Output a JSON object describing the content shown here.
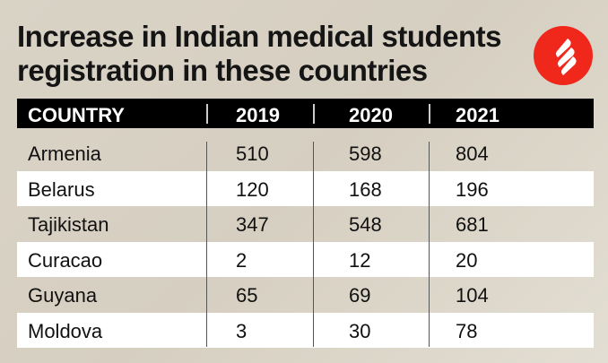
{
  "title": "Increase in Indian medical students registration in these countries",
  "logo": {
    "name": "indian-express-logo",
    "color": "#f0281c"
  },
  "chart_data": {
    "type": "table",
    "title": "Increase in Indian medical students registration in these countries",
    "columns": [
      "COUNTRY",
      "2019",
      "2020",
      "2021"
    ],
    "rows": [
      [
        "Armenia",
        "510",
        "598",
        "804"
      ],
      [
        "Belarus",
        "120",
        "168",
        "196"
      ],
      [
        "Tajikistan",
        "347",
        "548",
        "681"
      ],
      [
        "Curacao",
        "2",
        "12",
        "20"
      ],
      [
        "Guyana",
        "65",
        "69",
        "104"
      ],
      [
        "Moldova",
        "3",
        "30",
        "78"
      ]
    ]
  }
}
